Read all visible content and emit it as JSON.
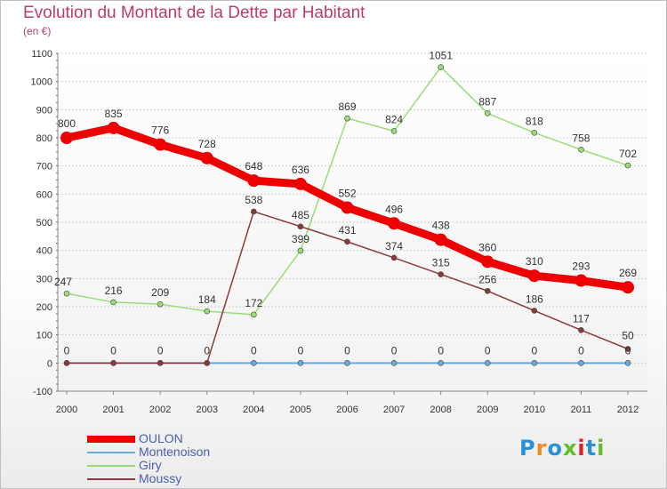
{
  "chart_data": {
    "type": "line",
    "title": "Evolution du Montant de la Dette par Habitant",
    "subtitle": "(en €)",
    "x": [
      "2000",
      "2001",
      "2002",
      "2003",
      "2004",
      "2005",
      "2006",
      "2007",
      "2008",
      "2009",
      "2010",
      "2011",
      "2012"
    ],
    "ylim": [
      -100,
      1100
    ],
    "yticks": [
      -100,
      0,
      100,
      200,
      300,
      400,
      500,
      600,
      700,
      800,
      900,
      1000,
      1100
    ],
    "grid": "horizontal",
    "legend_position": "bottom-left",
    "series": [
      {
        "name": "OULON",
        "color": "#ee0000",
        "width": 9,
        "labels": true,
        "values": [
          800,
          835,
          776,
          728,
          648,
          636,
          552,
          496,
          438,
          360,
          310,
          293,
          269
        ]
      },
      {
        "name": "Montenoison",
        "color": "#6aaad8",
        "width": 2,
        "labels": false,
        "values": [
          0,
          0,
          0,
          0,
          0,
          0,
          0,
          0,
          0,
          0,
          0,
          0,
          0
        ]
      },
      {
        "name": "Giry",
        "color": "#99dd77",
        "width": 1.5,
        "labels": true,
        "values": [
          247,
          216,
          209,
          184,
          172,
          399,
          869,
          824,
          1051,
          887,
          818,
          758,
          702
        ]
      },
      {
        "name": "Moussy",
        "color": "#8a3a3a",
        "width": 1.5,
        "labels": true,
        "values": [
          0,
          0,
          0,
          0,
          538,
          485,
          431,
          374,
          315,
          256,
          186,
          117,
          50
        ]
      }
    ]
  },
  "logo": {
    "text": "Proxiti",
    "colors": [
      "#2a8fd6",
      "#f08a1c",
      "#2a8fd6",
      "#5fbf2a",
      "#e02020",
      "#2a8fd6",
      "#5fbf2a"
    ]
  }
}
